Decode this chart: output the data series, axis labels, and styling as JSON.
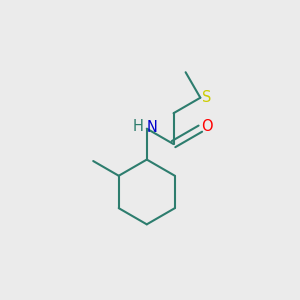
{
  "background_color": "#ebebeb",
  "bond_color": "#2d7d6e",
  "bond_width": 1.5,
  "atom_colors": {
    "N": "#0000cc",
    "O": "#ff0000",
    "S": "#cccc00",
    "H": "#2d7d6e"
  },
  "font_size": 10.5,
  "fig_size": [
    3.0,
    3.0
  ],
  "dpi": 100
}
